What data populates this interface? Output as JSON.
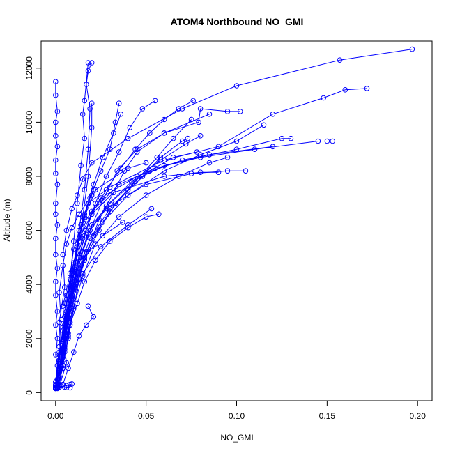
{
  "chart_data": {
    "type": "line",
    "title": "ATOM4 Northbound NO_GMI",
    "xlabel": "NO_GMI",
    "ylabel": "Altitude (m)",
    "xlim": [
      -0.008,
      0.208
    ],
    "ylim": [
      -300,
      13000
    ],
    "x_ticks": [
      0.0,
      0.05,
      0.1,
      0.15,
      0.2
    ],
    "x_tick_labels": [
      "0.00",
      "0.05",
      "0.10",
      "0.15",
      "0.20"
    ],
    "y_ticks": [
      0,
      2000,
      4000,
      6000,
      8000,
      10000,
      12000
    ],
    "y_tick_labels": [
      "0",
      "2000",
      "4000",
      "6000",
      "8000",
      "10000",
      "12000"
    ],
    "grid": false,
    "marker": "open-circle",
    "color": "#0000ff",
    "series": [
      {
        "x": [
          0.001,
          0.003,
          0.002,
          0.005,
          0.004,
          0.006,
          0.009,
          0.012,
          0.015,
          0.02,
          0.04,
          0.07,
          0.1,
          0.157,
          0.197
        ],
        "y": [
          150,
          1200,
          2600,
          3900,
          5100,
          6000,
          6800,
          7300,
          7900,
          8500,
          9400,
          10500,
          11350,
          12300,
          12700
        ]
      },
      {
        "x": [
          0.0,
          0.003,
          0.006,
          0.004,
          0.008,
          0.01,
          0.014,
          0.018,
          0.03,
          0.06,
          0.09,
          0.12,
          0.148,
          0.16,
          0.172
        ],
        "y": [
          200,
          1000,
          2000,
          3200,
          4400,
          5300,
          6200,
          7000,
          7600,
          8600,
          9100,
          10300,
          10900,
          11200,
          11250
        ]
      },
      {
        "x": [
          0.001,
          0.004,
          0.003,
          0.007,
          0.009,
          0.012,
          0.016,
          0.02,
          0.035,
          0.055,
          0.08,
          0.11,
          0.145,
          0.15,
          0.153
        ],
        "y": [
          180,
          900,
          1800,
          2800,
          3800,
          4800,
          5800,
          6700,
          7700,
          8300,
          8700,
          9000,
          9300,
          9300,
          9300
        ]
      },
      {
        "x": [
          0.0,
          0.002,
          0.005,
          0.006,
          0.01,
          0.013,
          0.017,
          0.025,
          0.045,
          0.07,
          0.1,
          0.125,
          0.13
        ],
        "y": [
          300,
          1500,
          2500,
          3600,
          4600,
          5600,
          6400,
          7200,
          8000,
          8600,
          9000,
          9400,
          9400
        ]
      },
      {
        "x": [
          0.002,
          0.006,
          0.004,
          0.008,
          0.011,
          0.015,
          0.019,
          0.028,
          0.05,
          0.075,
          0.095,
          0.105
        ],
        "y": [
          200,
          1100,
          2300,
          3400,
          4300,
          5200,
          6000,
          6800,
          7700,
          8100,
          8200,
          8200
        ]
      },
      {
        "x": [
          0.0,
          0.003,
          0.007,
          0.005,
          0.009,
          0.013,
          0.02,
          0.032,
          0.06,
          0.08,
          0.09
        ],
        "y": [
          250,
          1300,
          2200,
          3300,
          4500,
          5700,
          6600,
          7400,
          8000,
          8150,
          8150
        ]
      },
      {
        "x": [
          0.001,
          0.004,
          0.006,
          0.01,
          0.014,
          0.02,
          0.03,
          0.045,
          0.06,
          0.085,
          0.12
        ],
        "y": [
          200,
          1400,
          2700,
          4000,
          5000,
          6200,
          7000,
          7900,
          8400,
          8800,
          9100
        ]
      },
      {
        "x": [
          0.0,
          0.002,
          0.004,
          0.006,
          0.009,
          0.012,
          0.016,
          0.022,
          0.04,
          0.05
        ],
        "y": [
          150,
          900,
          1900,
          3000,
          4100,
          5400,
          6500,
          7500,
          8300,
          8500
        ]
      },
      {
        "x": [
          0.001,
          0.003,
          0.005,
          0.008,
          0.012,
          0.018,
          0.028,
          0.042,
          0.058,
          0.072,
          0.08
        ],
        "y": [
          200,
          1200,
          2400,
          3500,
          4700,
          5900,
          6900,
          7800,
          8600,
          9200,
          9500
        ]
      },
      {
        "x": [
          0.0,
          0.004,
          0.007,
          0.01,
          0.015,
          0.022,
          0.035,
          0.05,
          0.068,
          0.085,
          0.095
        ],
        "y": [
          180,
          1000,
          2100,
          3200,
          4300,
          5500,
          6500,
          7300,
          8000,
          8500,
          8700
        ]
      },
      {
        "x": [
          0.002,
          0.005,
          0.008,
          0.012,
          0.017,
          0.026,
          0.04,
          0.06,
          0.08,
          0.1,
          0.115
        ],
        "y": [
          250,
          1500,
          2900,
          4100,
          5200,
          6300,
          7300,
          8200,
          8800,
          9300,
          9900
        ]
      },
      {
        "x": [
          0.001,
          0.003,
          0.006,
          0.009,
          0.013,
          0.019,
          0.03,
          0.044,
          0.056,
          0.065,
          0.075
        ],
        "y": [
          200,
          1100,
          2300,
          3500,
          4600,
          5700,
          6800,
          7800,
          8700,
          9400,
          10100
        ]
      },
      {
        "x": [
          0.0,
          0.002,
          0.005,
          0.007,
          0.01,
          0.014,
          0.019,
          0.026,
          0.034,
          0.045,
          0.06,
          0.085
        ],
        "y": [
          150,
          800,
          1700,
          2800,
          3900,
          5000,
          6000,
          7100,
          8200,
          9000,
          9600,
          10300
        ]
      },
      {
        "x": [
          0.001,
          0.004,
          0.008,
          0.011,
          0.016,
          0.024,
          0.033,
          0.048,
          0.058,
          0.07,
          0.073
        ],
        "y": [
          200,
          1300,
          2600,
          3800,
          4900,
          6000,
          7000,
          8000,
          8700,
          9300,
          9400
        ]
      },
      {
        "x": [
          0.0,
          0.003,
          0.006,
          0.009,
          0.014,
          0.021,
          0.03,
          0.04,
          0.052,
          0.065,
          0.078
        ],
        "y": [
          250,
          1200,
          2400,
          3600,
          4700,
          5800,
          6700,
          7500,
          8200,
          8700,
          8900
        ]
      },
      {
        "x": [
          0.001,
          0.004,
          0.007,
          0.01,
          0.013,
          0.018,
          0.024,
          0.032,
          0.038,
          0.045,
          0.06,
          0.079,
          0.08,
          0.095,
          0.102
        ],
        "y": [
          200,
          1000,
          2000,
          3100,
          4200,
          5300,
          6400,
          7400,
          8200,
          8900,
          9600,
          10000,
          10500,
          10400,
          10400
        ]
      },
      {
        "x": [
          0.0,
          0.002,
          0.004,
          0.006,
          0.008,
          0.011,
          0.015,
          0.02,
          0.028,
          0.036,
          0.044,
          0.052,
          0.06,
          0.068,
          0.076
        ],
        "y": [
          180,
          900,
          1800,
          2800,
          3800,
          4800,
          5700,
          6600,
          7500,
          8300,
          9000,
          9600,
          10100,
          10500,
          10800
        ]
      },
      {
        "x": [
          0.001,
          0.003,
          0.005,
          0.007,
          0.009,
          0.012,
          0.016,
          0.021,
          0.026,
          0.032,
          0.036
        ],
        "y": [
          220,
          1100,
          2200,
          3300,
          4400,
          5500,
          6600,
          7700,
          8700,
          9600,
          10300
        ]
      },
      {
        "x": [
          0.0,
          0.003,
          0.006,
          0.009,
          0.012,
          0.015,
          0.018,
          0.02,
          0.02
        ],
        "y": [
          160,
          1300,
          2600,
          3900,
          5200,
          6500,
          8000,
          9800,
          10700
        ]
      },
      {
        "x": [
          0.001,
          0.004,
          0.007,
          0.01,
          0.013,
          0.016,
          0.018,
          0.019,
          0.017,
          0.018,
          0.02
        ],
        "y": [
          200,
          1500,
          3000,
          4500,
          6000,
          7500,
          9000,
          10500,
          11400,
          11900,
          12200
        ]
      },
      {
        "x": [
          0.0,
          0.002,
          0.005,
          0.008,
          0.01,
          0.012,
          0.014,
          0.016,
          0.015,
          0.016,
          0.018
        ],
        "y": [
          250,
          1400,
          2800,
          4200,
          5600,
          7000,
          8400,
          9400,
          10300,
          10800,
          12200
        ]
      },
      {
        "x": [
          0.001,
          0.003,
          0.005,
          0.008,
          0.01,
          0.013,
          0.017,
          0.022,
          0.028,
          0.035,
          0.041,
          0.048,
          0.055
        ],
        "y": [
          200,
          1000,
          2000,
          3000,
          4000,
          5000,
          6000,
          7000,
          8000,
          8900,
          9800,
          10500,
          10800
        ]
      },
      {
        "x": [
          0.0,
          0.002,
          0.004,
          0.007,
          0.01,
          0.014,
          0.019,
          0.025,
          0.03,
          0.033,
          0.035
        ],
        "y": [
          180,
          1200,
          2400,
          3600,
          4800,
          6000,
          7200,
          8200,
          9000,
          10000,
          10700
        ]
      },
      {
        "x": [
          0.0,
          0.001,
          0.001,
          0.0,
          0.001,
          0.0,
          0.001,
          0.0,
          0.0,
          0.001,
          0.0,
          0.0,
          0.001,
          0.0,
          0.0,
          0.001,
          0.0,
          0.0,
          0.001,
          0.0,
          0.0,
          0.001,
          0.0,
          0.0
        ],
        "y": [
          150,
          500,
          1000,
          1400,
          2000,
          2500,
          3000,
          3600,
          4100,
          4600,
          5100,
          5700,
          6200,
          6600,
          7000,
          7700,
          8100,
          8600,
          9100,
          9500,
          10000,
          10400,
          11000,
          11500
        ]
      },
      {
        "x": [
          0.0,
          0.002,
          0.003,
          0.002,
          0.004,
          0.006,
          0.009,
          0.013,
          0.02,
          0.021
        ],
        "y": [
          400,
          1700,
          2700,
          3700,
          4700,
          5500,
          6100,
          6600,
          7300,
          7500
        ]
      },
      {
        "x": [
          0.002,
          0.005,
          0.008,
          0.012,
          0.016,
          0.022,
          0.03,
          0.04,
          0.05,
          0.057
        ],
        "y": [
          600,
          1600,
          2500,
          3300,
          4100,
          4900,
          5600,
          6100,
          6500,
          6600
        ]
      },
      {
        "x": [
          0.004,
          0.007,
          0.01,
          0.013,
          0.017,
          0.021,
          0.018
        ],
        "y": [
          300,
          900,
          1500,
          2100,
          2500,
          2800,
          3200
        ]
      },
      {
        "x": [
          0.003,
          0.006,
          0.009,
          0.015,
          0.025,
          0.04,
          0.053
        ],
        "y": [
          1200,
          2300,
          3400,
          4400,
          5400,
          6200,
          6800
        ]
      },
      {
        "x": [
          0.002,
          0.005,
          0.008,
          0.011,
          0.016,
          0.026,
          0.037
        ],
        "y": [
          800,
          2000,
          3100,
          4000,
          5000,
          5800,
          6300
        ]
      },
      {
        "x": [
          0.001,
          0.003,
          0.005,
          0.006,
          0.008
        ],
        "y": [
          180,
          250,
          200,
          190,
          180
        ]
      },
      {
        "x": [
          0.002,
          0.004,
          0.006,
          0.008,
          0.009
        ],
        "y": [
          300,
          280,
          260,
          300,
          320
        ]
      }
    ]
  }
}
